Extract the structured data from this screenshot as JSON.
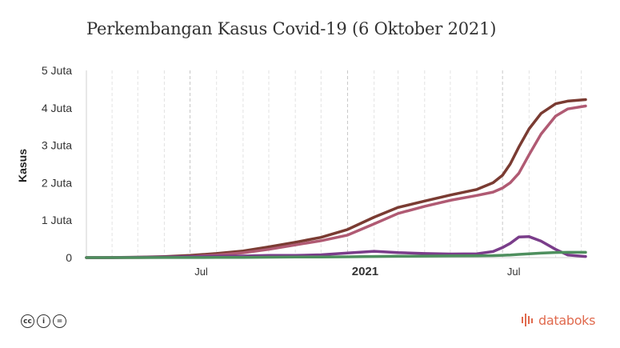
{
  "chart_data": {
    "type": "line",
    "title": "Perkembangan Kasus Covid-19 (6 Oktober 2021)",
    "ylabel": "Kasus",
    "xlabel": "",
    "y_unit": "Juta",
    "ylim": [
      0,
      5
    ],
    "y_ticks": [
      {
        "value": 0,
        "label": "0"
      },
      {
        "value": 1,
        "label": "1 Juta"
      },
      {
        "value": 2,
        "label": "2 Juta"
      },
      {
        "value": 3,
        "label": "3 Juta"
      },
      {
        "value": 4,
        "label": "4 Juta"
      },
      {
        "value": 5,
        "label": "5 Juta"
      }
    ],
    "x_range": [
      "2020-03-02",
      "2021-10-06"
    ],
    "x_ticks": [
      {
        "date": "2020-07-01",
        "label": "Jul",
        "bold": false
      },
      {
        "date": "2021-01-01",
        "label": "2021",
        "bold": true
      },
      {
        "date": "2021-07-01",
        "label": "Jul",
        "bold": false
      }
    ],
    "grid": true,
    "series": [
      {
        "color": "#7a3b32",
        "points": [
          [
            "2020-03-02",
            0
          ],
          [
            "2020-04-01",
            0.002
          ],
          [
            "2020-05-01",
            0.01
          ],
          [
            "2020-06-01",
            0.027
          ],
          [
            "2020-07-01",
            0.057
          ],
          [
            "2020-08-01",
            0.109
          ],
          [
            "2020-09-01",
            0.177
          ],
          [
            "2020-10-01",
            0.287
          ],
          [
            "2020-11-01",
            0.41
          ],
          [
            "2020-12-01",
            0.54
          ],
          [
            "2021-01-01",
            0.75
          ],
          [
            "2021-02-01",
            1.08
          ],
          [
            "2021-03-01",
            1.34
          ],
          [
            "2021-04-01",
            1.51
          ],
          [
            "2021-05-01",
            1.67
          ],
          [
            "2021-06-01",
            1.82
          ],
          [
            "2021-06-20",
            2.0
          ],
          [
            "2021-07-01",
            2.2
          ],
          [
            "2021-07-10",
            2.5
          ],
          [
            "2021-07-20",
            2.95
          ],
          [
            "2021-08-01",
            3.44
          ],
          [
            "2021-08-15",
            3.85
          ],
          [
            "2021-09-01",
            4.11
          ],
          [
            "2021-09-15",
            4.18
          ],
          [
            "2021-10-06",
            4.22
          ]
        ]
      },
      {
        "color": "#b05a73",
        "points": [
          [
            "2020-03-02",
            0
          ],
          [
            "2020-04-01",
            0.0003
          ],
          [
            "2020-05-01",
            0.002
          ],
          [
            "2020-06-01",
            0.009
          ],
          [
            "2020-07-01",
            0.029
          ],
          [
            "2020-08-01",
            0.07
          ],
          [
            "2020-09-01",
            0.128
          ],
          [
            "2020-10-01",
            0.221
          ],
          [
            "2020-11-01",
            0.34
          ],
          [
            "2020-12-01",
            0.45
          ],
          [
            "2021-01-01",
            0.6
          ],
          [
            "2021-02-01",
            0.9
          ],
          [
            "2021-03-01",
            1.18
          ],
          [
            "2021-04-01",
            1.37
          ],
          [
            "2021-05-01",
            1.53
          ],
          [
            "2021-06-01",
            1.66
          ],
          [
            "2021-06-20",
            1.75
          ],
          [
            "2021-07-01",
            1.86
          ],
          [
            "2021-07-10",
            2.0
          ],
          [
            "2021-07-20",
            2.25
          ],
          [
            "2021-08-01",
            2.75
          ],
          [
            "2021-08-15",
            3.3
          ],
          [
            "2021-09-01",
            3.78
          ],
          [
            "2021-09-15",
            3.97
          ],
          [
            "2021-10-06",
            4.05
          ]
        ]
      },
      {
        "color": "#7a3d8a",
        "points": [
          [
            "2020-03-02",
            0
          ],
          [
            "2020-04-01",
            0.001
          ],
          [
            "2020-05-01",
            0.008
          ],
          [
            "2020-06-01",
            0.017
          ],
          [
            "2020-07-01",
            0.026
          ],
          [
            "2020-08-01",
            0.036
          ],
          [
            "2020-09-01",
            0.043
          ],
          [
            "2020-10-01",
            0.059
          ],
          [
            "2020-11-01",
            0.058
          ],
          [
            "2020-12-01",
            0.075
          ],
          [
            "2021-01-01",
            0.121
          ],
          [
            "2021-02-01",
            0.168
          ],
          [
            "2021-03-01",
            0.132
          ],
          [
            "2021-04-01",
            0.108
          ],
          [
            "2021-05-01",
            0.097
          ],
          [
            "2021-06-01",
            0.102
          ],
          [
            "2021-06-20",
            0.162
          ],
          [
            "2021-07-01",
            0.27
          ],
          [
            "2021-07-10",
            0.38
          ],
          [
            "2021-07-20",
            0.55
          ],
          [
            "2021-08-01",
            0.56
          ],
          [
            "2021-08-15",
            0.44
          ],
          [
            "2021-09-01",
            0.22
          ],
          [
            "2021-09-15",
            0.07
          ],
          [
            "2021-10-06",
            0.03
          ]
        ]
      },
      {
        "color": "#4e8f5e",
        "points": [
          [
            "2020-03-02",
            0
          ],
          [
            "2020-04-01",
            0.0001
          ],
          [
            "2020-05-01",
            0.0009
          ],
          [
            "2020-06-01",
            0.0016
          ],
          [
            "2020-07-01",
            0.0028
          ],
          [
            "2020-08-01",
            0.0045
          ],
          [
            "2020-09-01",
            0.0066
          ],
          [
            "2020-10-01",
            0.011
          ],
          [
            "2020-11-01",
            0.0145
          ],
          [
            "2020-12-01",
            0.017
          ],
          [
            "2021-01-01",
            0.022
          ],
          [
            "2021-02-01",
            0.029
          ],
          [
            "2021-03-01",
            0.036
          ],
          [
            "2021-04-01",
            0.041
          ],
          [
            "2021-05-01",
            0.045
          ],
          [
            "2021-06-01",
            0.049
          ],
          [
            "2021-06-20",
            0.054
          ],
          [
            "2021-07-01",
            0.061
          ],
          [
            "2021-07-10",
            0.07
          ],
          [
            "2021-07-20",
            0.085
          ],
          [
            "2021-08-01",
            0.1
          ],
          [
            "2021-08-15",
            0.12
          ],
          [
            "2021-09-01",
            0.136
          ],
          [
            "2021-09-15",
            0.14
          ],
          [
            "2021-10-06",
            0.142
          ]
        ]
      }
    ]
  },
  "footer": {
    "license_icons": [
      "cc-icon",
      "by-icon",
      "nd-icon"
    ],
    "license_glyphs": {
      "cc": "cc",
      "by": "i",
      "nd": "="
    },
    "brand": "databoks",
    "brand_color": "#e06a4e"
  }
}
